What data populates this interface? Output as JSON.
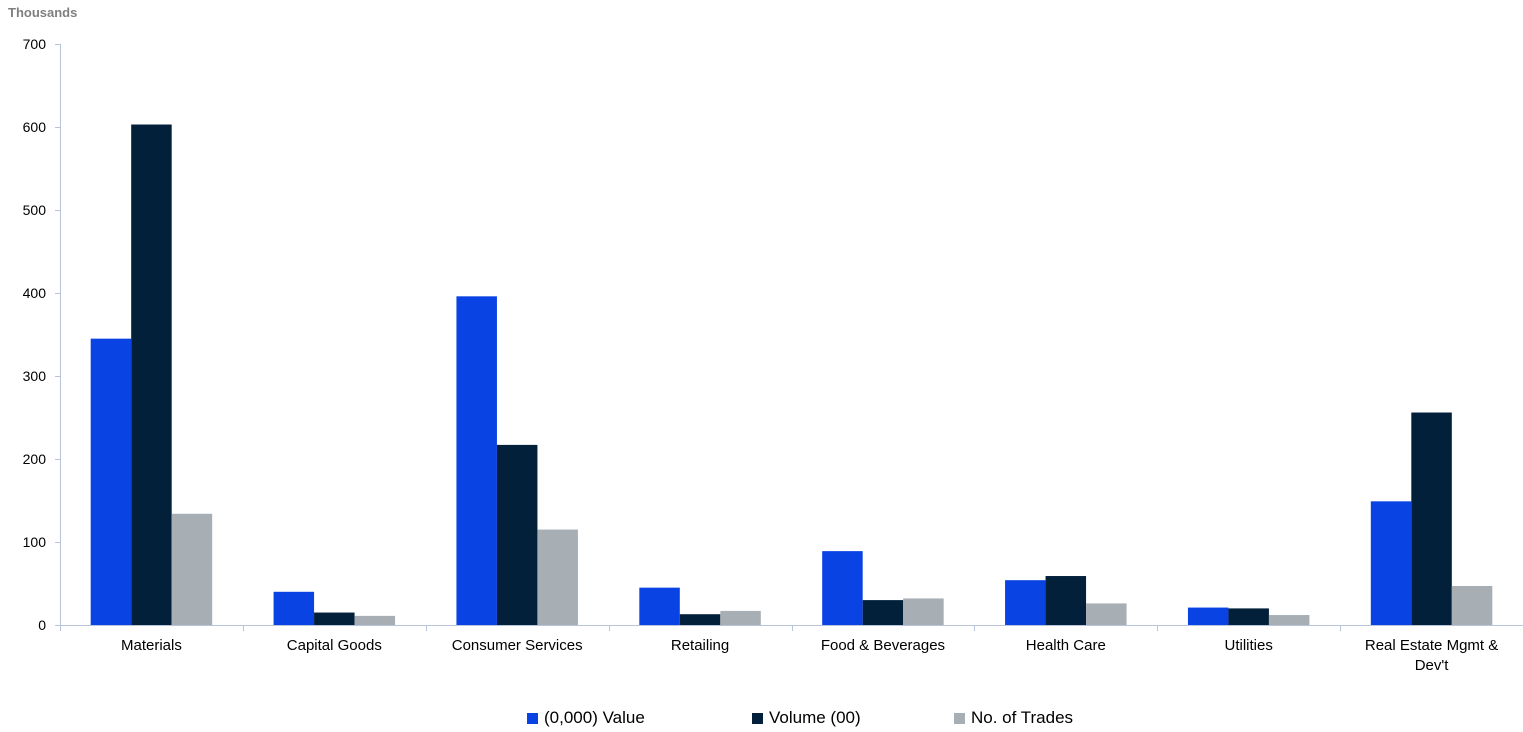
{
  "chart_data": {
    "type": "bar",
    "unit_label": "Thousands",
    "ylim": [
      0,
      700
    ],
    "yticks": [
      0,
      100,
      200,
      300,
      400,
      500,
      600,
      700
    ],
    "categories": [
      [
        "Materials"
      ],
      [
        "Capital Goods"
      ],
      [
        "Consumer Services"
      ],
      [
        "Retailing"
      ],
      [
        "Food & Beverages"
      ],
      [
        "Health Care"
      ],
      [
        "Utilities"
      ],
      [
        "Real Estate Mgmt &",
        "Dev't"
      ]
    ],
    "series": [
      {
        "name": "(0,000) Value",
        "color": "#0a43e3",
        "values": [
          345,
          40,
          396,
          45,
          89,
          54,
          21,
          149
        ]
      },
      {
        "name": "Volume (00)",
        "color": "#03203a",
        "values": [
          603,
          15,
          217,
          13,
          30,
          59,
          20,
          256
        ]
      },
      {
        "name": "No. of Trades",
        "color": "#a7afb5",
        "values": [
          134,
          11,
          115,
          17,
          32,
          26,
          12,
          47
        ]
      }
    ],
    "legend_position": "bottom",
    "grid": false
  }
}
